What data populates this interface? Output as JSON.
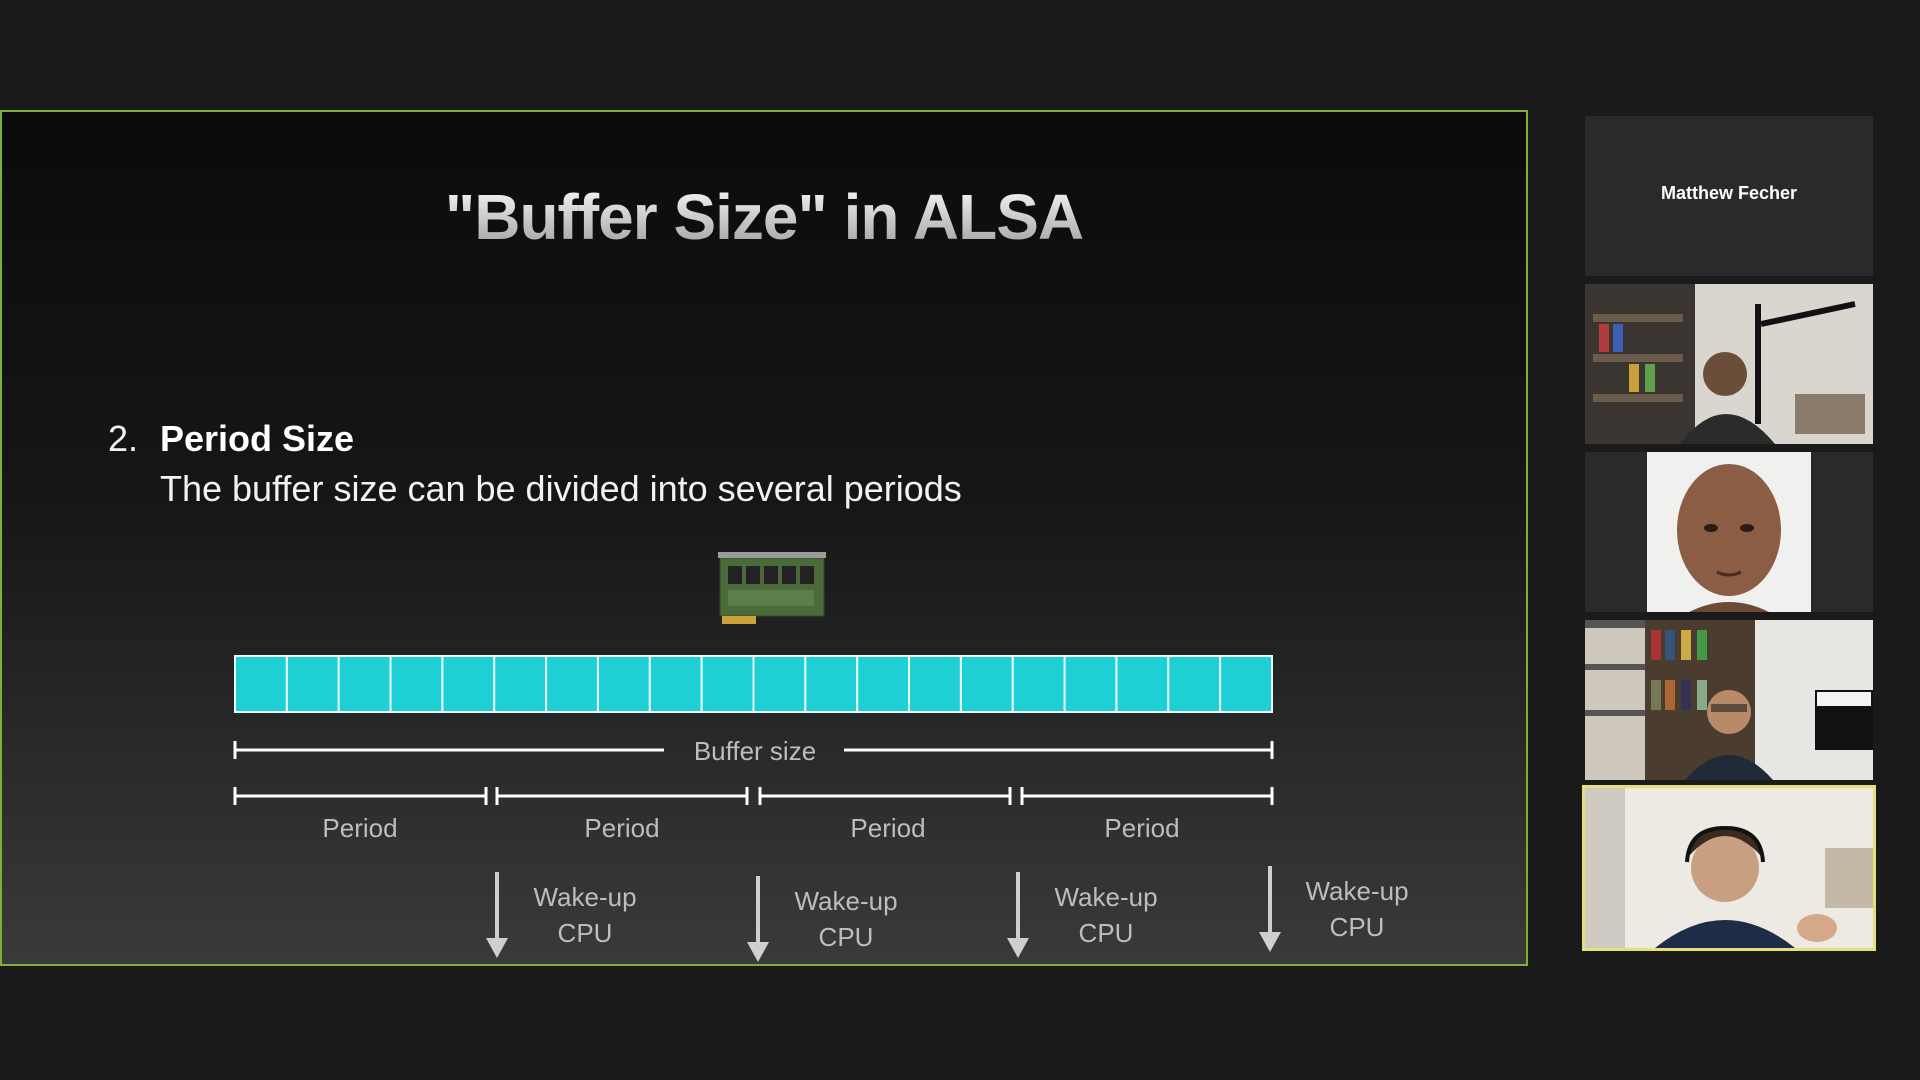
{
  "slide": {
    "title": "\"Buffer Size\" in ALSA",
    "item_number": "2.",
    "item_heading": "Period Size",
    "item_description": "The buffer size can be divided into several periods",
    "buffer_cells": 20,
    "buffer_color": "#1ecfd3",
    "buffer_label": "Buffer size",
    "period_labels": [
      "Period",
      "Period",
      "Period",
      "Period"
    ],
    "wakeup_labels": [
      {
        "line1": "Wake-up",
        "line2": "CPU"
      },
      {
        "line1": "Wake-up",
        "line2": "CPU"
      },
      {
        "line1": "Wake-up",
        "line2": "CPU"
      },
      {
        "line1": "Wake-up",
        "line2": "CPU"
      }
    ],
    "border_color": "#7fae3a"
  },
  "participants": [
    {
      "name": "Matthew Fecher",
      "video": false
    },
    {
      "video": true,
      "icon": "participant-video-icon"
    },
    {
      "video": true,
      "icon": "participant-video-icon"
    },
    {
      "video": true,
      "icon": "participant-video-icon"
    },
    {
      "video": true,
      "icon": "participant-video-icon",
      "active_speaker": true,
      "highlight_color": "#e6e07a"
    }
  ]
}
